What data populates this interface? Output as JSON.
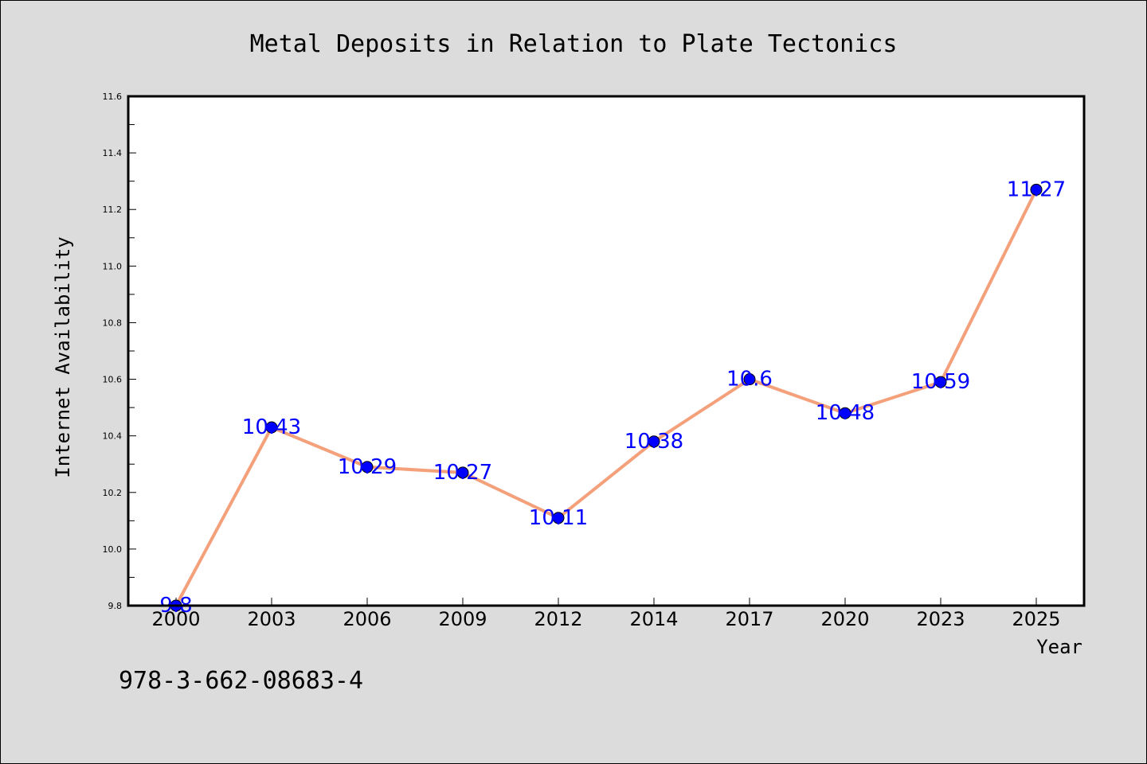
{
  "chart_data": {
    "type": "line",
    "title": "Metal Deposits in Relation to Plate Tectonics",
    "xlabel": "Year",
    "ylabel": "Internet Availability",
    "x": [
      "2000",
      "2003",
      "2006",
      "2009",
      "2012",
      "2014",
      "2017",
      "2020",
      "2023",
      "2025"
    ],
    "series": [
      {
        "values": [
          9.8,
          10.43,
          10.29,
          10.27,
          10.11,
          10.38,
          10.6,
          10.48,
          10.59,
          11.27
        ],
        "labels": [
          "9.8",
          "10.43",
          "10.29",
          "10.27",
          "10.11",
          "10.38",
          "10.6",
          "10.48",
          "10.59",
          "11.27"
        ],
        "line_color": "#f4a07a",
        "marker_color": "#0000ff",
        "label_color": "#0000ff"
      }
    ],
    "ylim": [
      9.8,
      11.6
    ],
    "yticks": [
      "9.8",
      "10.0",
      "10.2",
      "10.4",
      "10.6",
      "10.8",
      "11.0",
      "11.2",
      "11.4",
      "11.6"
    ],
    "grid": false,
    "legend": "none",
    "annotation": "978-3-662-08683-4"
  },
  "colors": {
    "background": "#dcdcdc",
    "plot_background": "#ffffff"
  }
}
